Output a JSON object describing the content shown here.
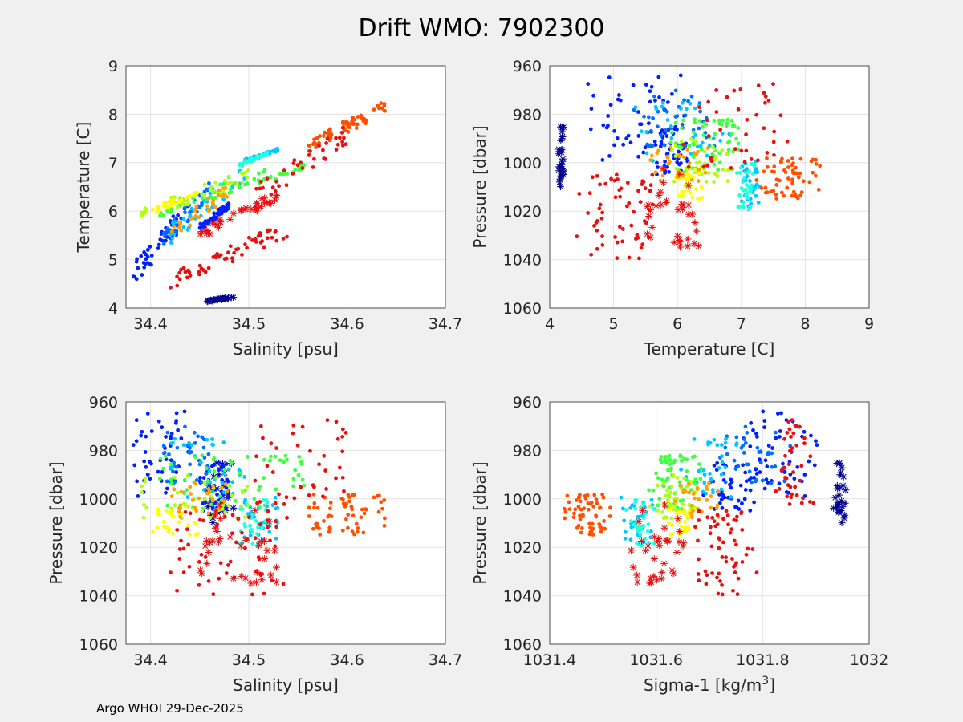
{
  "title": "Drift WMO: 7902300",
  "footer": "Argo WHOI 29-Dec-2025",
  "colors": {
    "figure_bg": "#f0f0f0",
    "axes_bg": "#ffffff",
    "grid": "#e3e3e3",
    "axis": "#262626",
    "palette": [
      "#00008f",
      "#0020ff",
      "#0070ff",
      "#00c8ff",
      "#20ffdf",
      "#40ff40",
      "#b0ff10",
      "#ffff00",
      "#ffa000",
      "#ff5000",
      "#e81010"
    ]
  },
  "chart_data": [
    {
      "type": "scatter",
      "id": "ts",
      "xlabel": "Salinity [psu]",
      "ylabel": "Temperature [C]",
      "xlim": [
        34.375,
        34.7
      ],
      "ylim": [
        4,
        9
      ],
      "xticks": [
        34.4,
        34.5,
        34.6,
        34.7
      ],
      "xticklabels": [
        "34.4",
        "34.5",
        "34.6",
        "34.7"
      ],
      "yticks": [
        4,
        5,
        6,
        7,
        8,
        9
      ],
      "yticklabels": [
        "4",
        "5",
        "6",
        "7",
        "8",
        "9"
      ],
      "y_reversed": false
    },
    {
      "type": "scatter",
      "id": "tp",
      "xlabel": "Temperature [C]",
      "ylabel": "Pressure [dbar]",
      "xlim": [
        4,
        9
      ],
      "ylim": [
        960,
        1060
      ],
      "xticks": [
        4,
        5,
        6,
        7,
        8,
        9
      ],
      "xticklabels": [
        "4",
        "5",
        "6",
        "7",
        "8",
        "9"
      ],
      "yticks": [
        960,
        980,
        1000,
        1020,
        1040,
        1060
      ],
      "yticklabels": [
        "960",
        "980",
        "1000",
        "1020",
        "1040",
        "1060"
      ],
      "y_reversed": true
    },
    {
      "type": "scatter",
      "id": "sp",
      "xlabel": "Salinity [psu]",
      "ylabel": "Pressure [dbar]",
      "xlim": [
        34.375,
        34.7
      ],
      "ylim": [
        960,
        1060
      ],
      "xticks": [
        34.4,
        34.5,
        34.6,
        34.7
      ],
      "xticklabels": [
        "34.4",
        "34.5",
        "34.6",
        "34.7"
      ],
      "yticks": [
        960,
        980,
        1000,
        1020,
        1040,
        1060
      ],
      "yticklabels": [
        "960",
        "980",
        "1000",
        "1020",
        "1040",
        "1060"
      ],
      "y_reversed": true
    },
    {
      "type": "scatter",
      "id": "dp",
      "xlabel": "Sigma-1 [kg/m",
      "xlabel_sup": "3",
      "xlabel_end": "]",
      "ylabel": "Pressure [dbar]",
      "xlim": [
        1031.4,
        1032
      ],
      "ylim": [
        960,
        1060
      ],
      "xticks": [
        1031.4,
        1031.6,
        1031.8,
        1032
      ],
      "xticklabels": [
        "1031.4",
        "1031.6",
        "1031.8",
        "1032"
      ],
      "yticks": [
        960,
        980,
        1000,
        1020,
        1040,
        1060
      ],
      "yticklabels": [
        "960",
        "980",
        "1000",
        "1020",
        "1040",
        "1060"
      ],
      "y_reversed": true
    }
  ],
  "clusters": [
    {
      "color_index": 0,
      "marker": "star",
      "n": 30,
      "S": [
        34.455,
        34.485
      ],
      "T": [
        4.12,
        4.24
      ],
      "P": [
        985,
        1010
      ],
      "D": [
        1031.93,
        1031.96
      ]
    },
    {
      "color_index": 1,
      "marker": "dot",
      "n": 50,
      "S": [
        34.38,
        34.44
      ],
      "T": [
        4.4,
        6.3
      ],
      "P": [
        963,
        1000
      ],
      "D": [
        1031.75,
        1031.91
      ]
    },
    {
      "color_index": 1,
      "marker": "dot",
      "n": 45,
      "S": [
        34.45,
        34.48
      ],
      "T": [
        5.6,
        6.2
      ],
      "P": [
        985,
        1005
      ],
      "D": [
        1031.68,
        1031.82
      ]
    },
    {
      "color_index": 2,
      "marker": "dot",
      "n": 40,
      "S": [
        34.41,
        34.46
      ],
      "T": [
        5.2,
        6.6
      ],
      "P": [
        970,
        995
      ],
      "D": [
        1031.7,
        1031.86
      ]
    },
    {
      "color_index": 3,
      "marker": "dot",
      "n": 35,
      "S": [
        34.42,
        34.5
      ],
      "T": [
        5.3,
        7.1
      ],
      "P": [
        975,
        1000
      ],
      "D": [
        1031.62,
        1031.78
      ]
    },
    {
      "color_index": 3,
      "marker": "dot",
      "n": 30,
      "S": [
        34.495,
        34.53
      ],
      "T": [
        7.0,
        7.3
      ],
      "P": [
        998,
        1018
      ],
      "D": [
        1031.53,
        1031.6
      ]
    },
    {
      "color_index": 4,
      "marker": "dot",
      "n": 30,
      "S": [
        34.49,
        34.52
      ],
      "T": [
        6.9,
        7.25
      ],
      "P": [
        1000,
        1020
      ],
      "D": [
        1031.54,
        1031.6
      ]
    },
    {
      "color_index": 5,
      "marker": "dot",
      "n": 45,
      "S": [
        34.4,
        34.52
      ],
      "T": [
        5.8,
        6.9
      ],
      "P": [
        982,
        1005
      ],
      "D": [
        1031.58,
        1031.7
      ]
    },
    {
      "color_index": 5,
      "marker": "dot",
      "n": 20,
      "S": [
        34.52,
        34.56
      ],
      "T": [
        6.6,
        7.0
      ],
      "P": [
        982,
        997
      ],
      "D": [
        1031.6,
        1031.66
      ]
    },
    {
      "color_index": 6,
      "marker": "dot",
      "n": 40,
      "S": [
        34.38,
        34.5
      ],
      "T": [
        5.7,
        6.9
      ],
      "P": [
        990,
        1008
      ],
      "D": [
        1031.58,
        1031.7
      ]
    },
    {
      "color_index": 7,
      "marker": "dot",
      "n": 30,
      "S": [
        34.4,
        34.45
      ],
      "T": [
        5.9,
        6.5
      ],
      "P": [
        1003,
        1015
      ],
      "D": [
        1031.62,
        1031.68
      ]
    },
    {
      "color_index": 8,
      "marker": "dot",
      "n": 30,
      "S": [
        34.42,
        34.48
      ],
      "T": [
        5.4,
        6.6
      ],
      "P": [
        993,
        1008
      ],
      "D": [
        1031.63,
        1031.73
      ]
    },
    {
      "color_index": 9,
      "marker": "dot",
      "n": 60,
      "S": [
        34.56,
        34.64
      ],
      "T": [
        7.2,
        8.3
      ],
      "P": [
        998,
        1015
      ],
      "D": [
        1031.42,
        1031.52
      ]
    },
    {
      "color_index": 10,
      "marker": "dot",
      "n": 60,
      "S": [
        34.42,
        34.54
      ],
      "T": [
        4.4,
        5.8
      ],
      "P": [
        1005,
        1040
      ],
      "D": [
        1031.66,
        1031.79
      ]
    },
    {
      "color_index": 10,
      "marker": "dot",
      "n": 40,
      "S": [
        34.5,
        34.6
      ],
      "T": [
        6.0,
        7.8
      ],
      "P": [
        967,
        1003
      ],
      "D": [
        1031.82,
        1031.9
      ]
    },
    {
      "color_index": 10,
      "marker": "star",
      "n": 35,
      "S": [
        34.45,
        34.53
      ],
      "T": [
        5.3,
        6.5
      ],
      "P": [
        1000,
        1035
      ],
      "D": [
        1031.55,
        1031.66
      ]
    }
  ]
}
